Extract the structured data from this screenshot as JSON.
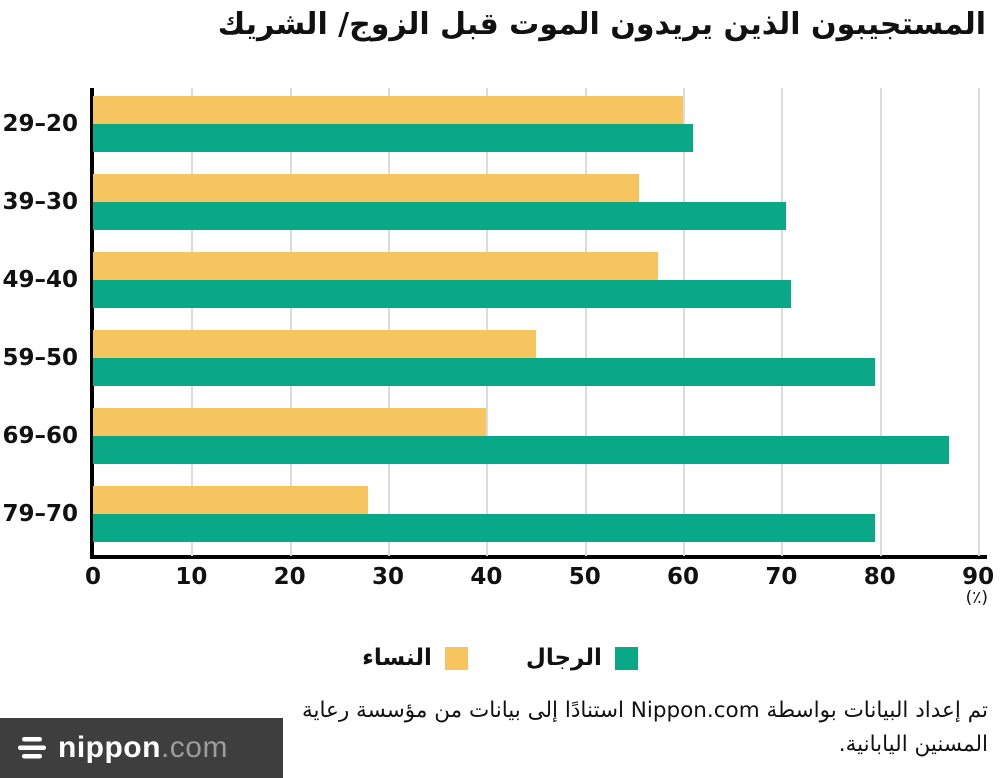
{
  "title": "المستجيبون الذين يريدون الموت قبل الزوج/ الشريك",
  "chart_data": {
    "type": "bar",
    "orientation": "horizontal",
    "title": "المستجيبون الذين يريدون الموت قبل الزوج/ الشريك",
    "categories": [
      "29–20",
      "39–30",
      "49–40",
      "59–50",
      "69–60",
      "79–70"
    ],
    "series": [
      {
        "name": "النساء",
        "key": "women",
        "color": "#F7C55F",
        "values": [
          60,
          55.5,
          57.5,
          45,
          40,
          28
        ]
      },
      {
        "name": "الرجال",
        "key": "men",
        "color": "#09A886",
        "values": [
          61,
          70.5,
          71,
          79.5,
          87,
          79.5
        ]
      }
    ],
    "x_ticks": [
      0,
      10,
      20,
      30,
      40,
      50,
      60,
      70,
      80,
      90
    ],
    "x_max": 90.7,
    "x_unit_label": "(٪)",
    "grid": true,
    "legend_position": "bottom"
  },
  "legend": {
    "items": [
      {
        "label": "الرجال",
        "color": "#09A886"
      },
      {
        "label": "النساء",
        "color": "#F7C55F"
      }
    ]
  },
  "footer": {
    "line1": "تم إعداد البيانات بواسطة Nippon.com استنادًا إلى بيانات من مؤسسة رعاية",
    "line2": "المسنين اليابانية."
  },
  "brand": {
    "name_bold": "nippon",
    "name_light": ".com"
  },
  "colors": {
    "women": "#F7C55F",
    "men": "#09A886",
    "axis": "#000000",
    "grid": "#DCDCDC",
    "brand_bar": "#3E3E3E"
  }
}
